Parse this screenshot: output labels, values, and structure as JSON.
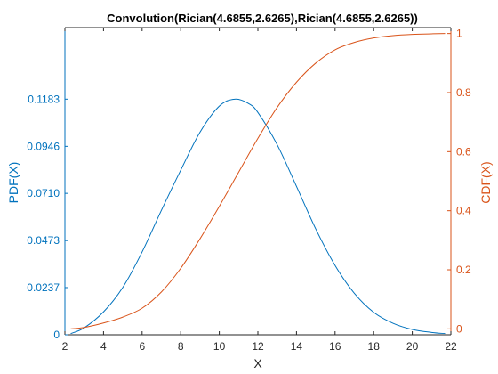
{
  "chart_data": {
    "type": "line",
    "title": "Convolution(Rician(4.6855,2.6265),Rician(4.6855,2.6265))",
    "xlabel": "X",
    "ylabel_left": "PDF(X)",
    "ylabel_right": "CDF(X)",
    "xlim": [
      2,
      22
    ],
    "ylim_left": [
      0,
      0.1542
    ],
    "ylim_right": [
      -0.02,
      1.02
    ],
    "x_ticks": [
      2,
      4,
      6,
      8,
      10,
      12,
      14,
      16,
      18,
      20,
      22
    ],
    "y_left_ticks": [
      {
        "value": 0,
        "label": "0"
      },
      {
        "value": 0.0237,
        "label": "0.0237"
      },
      {
        "value": 0.0473,
        "label": "0.0473"
      },
      {
        "value": 0.071,
        "label": "0.0710"
      },
      {
        "value": 0.0946,
        "label": "0.0946"
      },
      {
        "value": 0.1183,
        "label": "0.1183"
      }
    ],
    "y_right_ticks": [
      {
        "value": 0,
        "label": "0"
      },
      {
        "value": 0.2,
        "label": "0.2"
      },
      {
        "value": 0.4,
        "label": "0.4"
      },
      {
        "value": 0.6,
        "label": "0.6"
      },
      {
        "value": 0.8,
        "label": "0.8"
      },
      {
        "value": 1,
        "label": "1"
      }
    ],
    "series": [
      {
        "axis": "left",
        "color": "#0072BD",
        "x": [
          2.3,
          3,
          4,
          5,
          6,
          7,
          8,
          9,
          10,
          10.8,
          11.5,
          12,
          13,
          14,
          15,
          16,
          17,
          18,
          19,
          20,
          21,
          21.7
        ],
        "y": [
          0.0006,
          0.0035,
          0.0115,
          0.0238,
          0.0416,
          0.0625,
          0.0826,
          0.1017,
          0.1148,
          0.1183,
          0.1162,
          0.1116,
          0.0954,
          0.0745,
          0.0531,
          0.0348,
          0.0208,
          0.0113,
          0.0058,
          0.0027,
          0.0012,
          0.0006
        ]
      },
      {
        "axis": "right",
        "color": "#D95319",
        "x": [
          2.3,
          3,
          4,
          5,
          6,
          7,
          8,
          9,
          10,
          11,
          12,
          13,
          14,
          15,
          16,
          17,
          18,
          19,
          20,
          21,
          21.7
        ],
        "y": [
          0.0,
          0.005,
          0.02,
          0.04,
          0.07,
          0.125,
          0.205,
          0.305,
          0.415,
          0.53,
          0.645,
          0.75,
          0.835,
          0.9,
          0.945,
          0.97,
          0.985,
          0.993,
          0.997,
          0.999,
          1.0
        ]
      }
    ],
    "colors": {
      "left_axis": "#0072BD",
      "right_axis": "#D95319",
      "bottom_axis": "#262626"
    }
  }
}
